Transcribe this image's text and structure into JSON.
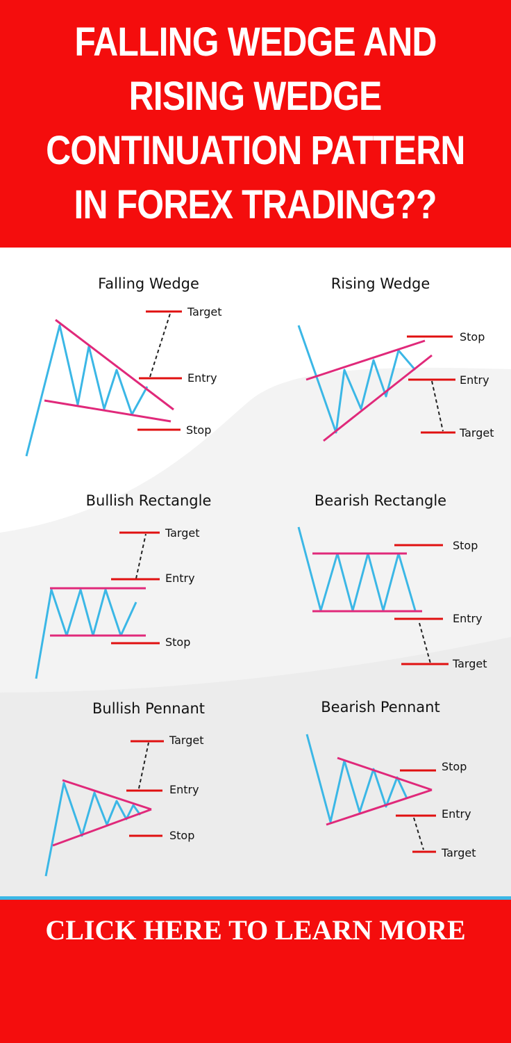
{
  "headline": {
    "lines": [
      "FALLING WEDGE AND",
      "RISING WEDGE",
      "CONTINUATION PATTERN",
      "IN FOREX TRADING??"
    ]
  },
  "patterns": {
    "falling_wedge": {
      "title": "Falling Wedge",
      "target": "Target",
      "entry": "Entry",
      "stop": "Stop"
    },
    "rising_wedge": {
      "title": "Rising Wedge",
      "stop": "Stop",
      "entry": "Entry",
      "target": "Target"
    },
    "bullish_rectangle": {
      "title": "Bullish Rectangle",
      "target": "Target",
      "entry": "Entry",
      "stop": "Stop"
    },
    "bearish_rectangle": {
      "title": "Bearish Rectangle",
      "stop": "Stop",
      "entry": "Entry",
      "target": "Target"
    },
    "bullish_pennant": {
      "title": "Bullish Pennant",
      "target": "Target",
      "entry": "Entry",
      "stop": "Stop"
    },
    "bearish_pennant": {
      "title": "Bearish Pennant",
      "stop": "Stop",
      "entry": "Entry",
      "target": "Target"
    }
  },
  "cta": {
    "label": "CLICK HERE TO LEARN MORE"
  },
  "colors": {
    "banner": "#f40d0d",
    "price_line": "#3bb7e6",
    "trend_line": "#e0297a",
    "marker": "#e01010"
  }
}
